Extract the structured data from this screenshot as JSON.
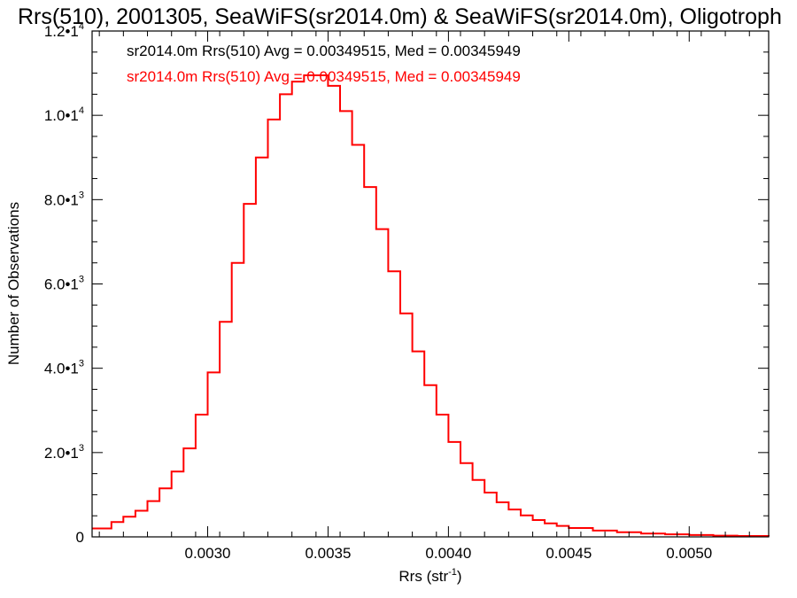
{
  "chart_data": {
    "type": "line",
    "title": "Rrs(510), 2001305, SeaWiFS(sr2014.0m) & SeaWiFS(sr2014.0m), Oligotroph",
    "xlabel_main": "Rrs (str",
    "xlabel_sup": "-1",
    "xlabel_end": ")",
    "ylabel": "Number of Observations",
    "xlim": [
      0.00252,
      0.00533
    ],
    "ylim": [
      0,
      12000
    ],
    "grid": false,
    "x_ticks": [
      {
        "value": 0.003,
        "label": "0.0030"
      },
      {
        "value": 0.0035,
        "label": "0.0035"
      },
      {
        "value": 0.004,
        "label": "0.0040"
      },
      {
        "value": 0.0045,
        "label": "0.0045"
      },
      {
        "value": 0.005,
        "label": "0.0050"
      }
    ],
    "y_ticks": [
      {
        "value": 0,
        "mant": "0",
        "exp": ""
      },
      {
        "value": 2000,
        "mant": "2.0•1",
        "exp": "3"
      },
      {
        "value": 4000,
        "mant": "4.0•1",
        "exp": "3"
      },
      {
        "value": 6000,
        "mant": "6.0•1",
        "exp": "3"
      },
      {
        "value": 8000,
        "mant": "8.0•1",
        "exp": "3"
      },
      {
        "value": 10000,
        "mant": "1.0•1",
        "exp": "4"
      },
      {
        "value": 12000,
        "mant": "1.2•1",
        "exp": "4"
      }
    ],
    "annotations": [
      {
        "text": "sr2014.0m Rrs(510) Avg = 0.00349515, Med = 0.00345949",
        "color": "#000000"
      },
      {
        "text": "sr2014.0m Rrs(510) Avg = 0.00349515, Med = 0.00345949",
        "color": "#ff0000"
      }
    ],
    "series": [
      {
        "color": "#000000",
        "line_width": 1.2,
        "x": [
          0.00252,
          0.0026,
          0.00265,
          0.0027,
          0.00275,
          0.0028,
          0.00285,
          0.0029,
          0.00295,
          0.003,
          0.00305,
          0.0031,
          0.00315,
          0.0032,
          0.00325,
          0.0033,
          0.00335,
          0.0034,
          0.00345,
          0.0035,
          0.00355,
          0.0036,
          0.00365,
          0.0037,
          0.00375,
          0.0038,
          0.00385,
          0.0039,
          0.00395,
          0.004,
          0.00405,
          0.0041,
          0.00415,
          0.0042,
          0.00425,
          0.0043,
          0.00435,
          0.0044,
          0.00445,
          0.0045,
          0.0046,
          0.0047,
          0.0048,
          0.0049,
          0.005,
          0.0051,
          0.0052,
          0.00533
        ],
        "y": [
          200,
          350,
          480,
          620,
          850,
          1150,
          1550,
          2100,
          2900,
          3900,
          5100,
          6500,
          7900,
          9000,
          9900,
          10500,
          10800,
          10950,
          10950,
          10700,
          10100,
          9300,
          8300,
          7300,
          6300,
          5300,
          4400,
          3600,
          2900,
          2250,
          1750,
          1350,
          1050,
          820,
          650,
          510,
          400,
          320,
          260,
          210,
          150,
          110,
          80,
          60,
          45,
          30,
          20,
          10
        ]
      },
      {
        "color": "#ff0000",
        "line_width": 2.0,
        "x": [
          0.00252,
          0.0026,
          0.00265,
          0.0027,
          0.00275,
          0.0028,
          0.00285,
          0.0029,
          0.00295,
          0.003,
          0.00305,
          0.0031,
          0.00315,
          0.0032,
          0.00325,
          0.0033,
          0.00335,
          0.0034,
          0.00345,
          0.0035,
          0.00355,
          0.0036,
          0.00365,
          0.0037,
          0.00375,
          0.0038,
          0.00385,
          0.0039,
          0.00395,
          0.004,
          0.00405,
          0.0041,
          0.00415,
          0.0042,
          0.00425,
          0.0043,
          0.00435,
          0.0044,
          0.00445,
          0.0045,
          0.0046,
          0.0047,
          0.0048,
          0.0049,
          0.005,
          0.0051,
          0.0052,
          0.00533
        ],
        "y": [
          200,
          350,
          480,
          620,
          850,
          1150,
          1550,
          2100,
          2900,
          3900,
          5100,
          6500,
          7900,
          9000,
          9900,
          10500,
          10800,
          10950,
          10950,
          10700,
          10100,
          9300,
          8300,
          7300,
          6300,
          5300,
          4400,
          3600,
          2900,
          2250,
          1750,
          1350,
          1050,
          820,
          650,
          510,
          400,
          320,
          260,
          210,
          150,
          110,
          80,
          60,
          45,
          30,
          20,
          10
        ]
      }
    ]
  }
}
